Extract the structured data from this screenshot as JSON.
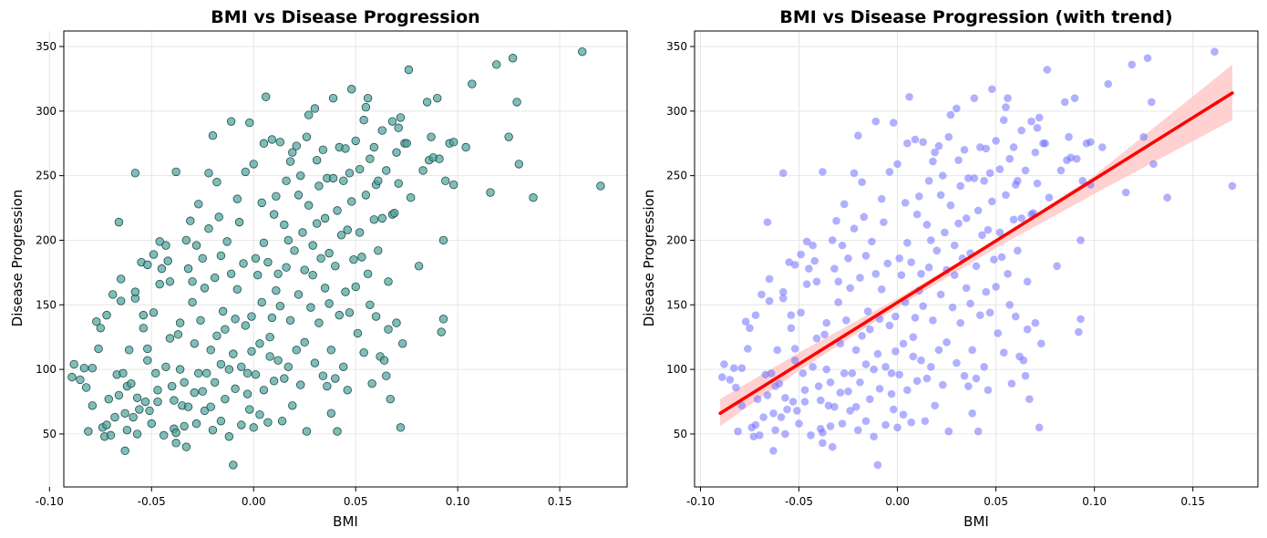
{
  "chart_data": [
    {
      "type": "scatter",
      "title": "BMI vs Disease Progression",
      "xlabel": "BMI",
      "ylabel": "Disease Progression",
      "xlim": [
        -0.093,
        0.183
      ],
      "ylim": [
        9,
        362
      ],
      "xticks": [
        "-0.10",
        "-0.05",
        "0.00",
        "0.05",
        "0.10",
        "0.15"
      ],
      "yticks": [
        "50",
        "100",
        "150",
        "200",
        "250",
        "300",
        "350"
      ],
      "grid": true,
      "marker_color": "#4aa19a",
      "marker_edge": "#1f4d4a",
      "points_ref": "shared_points"
    },
    {
      "type": "scatter",
      "title": "BMI vs Disease Progression (with trend)",
      "xlabel": "BMI",
      "ylabel": "Disease Progression",
      "xlim": [
        -0.103,
        0.183
      ],
      "ylim": [
        9,
        362
      ],
      "xticks": [
        "-0.10",
        "-0.05",
        "0.00",
        "0.05",
        "0.10",
        "0.15"
      ],
      "yticks": [
        "50",
        "100",
        "150",
        "200",
        "250",
        "300",
        "350"
      ],
      "grid": true,
      "marker_color": "#6f6fff",
      "trend_line": {
        "color": "#ff0000",
        "x": [
          -0.09,
          0.17
        ],
        "y": [
          66,
          314
        ]
      },
      "confidence_band": {
        "color": "#ffc6c6",
        "x": [
          -0.09,
          -0.05,
          0.0,
          0.05,
          0.1,
          0.17
        ],
        "lower": [
          56,
          99,
          148,
          194,
          236,
          293
        ],
        "upper": [
          77,
          113,
          155,
          200,
          250,
          336
        ]
      },
      "points_ref": "shared_points"
    }
  ],
  "shared_points": [
    [
      -0.089,
      94
    ],
    [
      -0.088,
      104
    ],
    [
      -0.085,
      92
    ],
    [
      -0.083,
      101
    ],
    [
      -0.082,
      86
    ],
    [
      -0.081,
      52
    ],
    [
      -0.079,
      101
    ],
    [
      -0.079,
      72
    ],
    [
      -0.077,
      137
    ],
    [
      -0.076,
      116
    ],
    [
      -0.075,
      132
    ],
    [
      -0.074,
      55
    ],
    [
      -0.073,
      48
    ],
    [
      -0.072,
      142
    ],
    [
      -0.072,
      57
    ],
    [
      -0.071,
      77
    ],
    [
      -0.07,
      49
    ],
    [
      -0.069,
      158
    ],
    [
      -0.068,
      63
    ],
    [
      -0.067,
      96
    ],
    [
      -0.066,
      80
    ],
    [
      -0.066,
      214
    ],
    [
      -0.065,
      170
    ],
    [
      -0.065,
      153
    ],
    [
      -0.064,
      97
    ],
    [
      -0.063,
      37
    ],
    [
      -0.063,
      66
    ],
    [
      -0.062,
      87
    ],
    [
      -0.062,
      53
    ],
    [
      -0.061,
      115
    ],
    [
      -0.06,
      89
    ],
    [
      -0.059,
      63
    ],
    [
      -0.058,
      252
    ],
    [
      -0.058,
      155
    ],
    [
      -0.058,
      160
    ],
    [
      -0.057,
      78
    ],
    [
      -0.057,
      50
    ],
    [
      -0.056,
      69
    ],
    [
      -0.055,
      183
    ],
    [
      -0.054,
      142
    ],
    [
      -0.054,
      132
    ],
    [
      -0.053,
      75
    ],
    [
      -0.052,
      107
    ],
    [
      -0.052,
      116
    ],
    [
      -0.052,
      181
    ],
    [
      -0.051,
      68
    ],
    [
      -0.05,
      58
    ],
    [
      -0.049,
      189
    ],
    [
      -0.049,
      144
    ],
    [
      -0.048,
      97
    ],
    [
      -0.047,
      84
    ],
    [
      -0.047,
      75
    ],
    [
      -0.046,
      166
    ],
    [
      -0.046,
      199
    ],
    [
      -0.045,
      178
    ],
    [
      -0.044,
      49
    ],
    [
      -0.043,
      196
    ],
    [
      -0.043,
      102
    ],
    [
      -0.042,
      184
    ],
    [
      -0.041,
      168
    ],
    [
      -0.041,
      124
    ],
    [
      -0.04,
      87
    ],
    [
      -0.039,
      54
    ],
    [
      -0.039,
      76
    ],
    [
      -0.038,
      43
    ],
    [
      -0.038,
      253
    ],
    [
      -0.038,
      51
    ],
    [
      -0.037,
      127
    ],
    [
      -0.036,
      136
    ],
    [
      -0.036,
      100
    ],
    [
      -0.035,
      72
    ],
    [
      -0.034,
      56
    ],
    [
      -0.034,
      90
    ],
    [
      -0.033,
      200
    ],
    [
      -0.033,
      40
    ],
    [
      -0.032,
      178
    ],
    [
      -0.032,
      71
    ],
    [
      -0.031,
      215
    ],
    [
      -0.03,
      152
    ],
    [
      -0.03,
      168
    ],
    [
      -0.029,
      82
    ],
    [
      -0.029,
      120
    ],
    [
      -0.028,
      196
    ],
    [
      -0.028,
      58
    ],
    [
      -0.027,
      228
    ],
    [
      -0.027,
      97
    ],
    [
      -0.026,
      138
    ],
    [
      -0.025,
      186
    ],
    [
      -0.025,
      83
    ],
    [
      -0.024,
      163
    ],
    [
      -0.024,
      68
    ],
    [
      -0.023,
      97
    ],
    [
      -0.022,
      252
    ],
    [
      -0.022,
      209
    ],
    [
      -0.021,
      71
    ],
    [
      -0.021,
      115
    ],
    [
      -0.02,
      281
    ],
    [
      -0.02,
      53
    ],
    [
      -0.019,
      171
    ],
    [
      -0.019,
      90
    ],
    [
      -0.018,
      245
    ],
    [
      -0.018,
      126
    ],
    [
      -0.017,
      218
    ],
    [
      -0.016,
      104
    ],
    [
      -0.016,
      188
    ],
    [
      -0.016,
      60
    ],
    [
      -0.015,
      145
    ],
    [
      -0.014,
      77
    ],
    [
      -0.014,
      131
    ],
    [
      -0.013,
      199
    ],
    [
      -0.012,
      100
    ],
    [
      -0.012,
      48
    ],
    [
      -0.011,
      292
    ],
    [
      -0.011,
      174
    ],
    [
      -0.01,
      26
    ],
    [
      -0.01,
      112
    ],
    [
      -0.009,
      139
    ],
    [
      -0.009,
      85
    ],
    [
      -0.008,
      162
    ],
    [
      -0.008,
      232
    ],
    [
      -0.007,
      214
    ],
    [
      -0.006,
      57
    ],
    [
      -0.006,
      102
    ],
    [
      -0.005,
      182
    ],
    [
      -0.004,
      253
    ],
    [
      -0.004,
      134
    ],
    [
      -0.003,
      97
    ],
    [
      -0.003,
      81
    ],
    [
      -0.002,
      291
    ],
    [
      -0.002,
      69
    ],
    [
      -0.001,
      141
    ],
    [
      -0.001,
      114
    ],
    [
      0.0,
      259
    ],
    [
      0.0,
      55
    ],
    [
      0.001,
      186
    ],
    [
      0.001,
      96
    ],
    [
      0.002,
      173
    ],
    [
      0.003,
      65
    ],
    [
      0.003,
      120
    ],
    [
      0.004,
      229
    ],
    [
      0.004,
      152
    ],
    [
      0.005,
      84
    ],
    [
      0.005,
      275
    ],
    [
      0.005,
      198
    ],
    [
      0.006,
      311
    ],
    [
      0.007,
      59
    ],
    [
      0.007,
      183
    ],
    [
      0.008,
      110
    ],
    [
      0.008,
      125
    ],
    [
      0.009,
      278
    ],
    [
      0.009,
      140
    ],
    [
      0.01,
      220
    ],
    [
      0.01,
      91
    ],
    [
      0.011,
      234
    ],
    [
      0.011,
      161
    ],
    [
      0.012,
      174
    ],
    [
      0.012,
      107
    ],
    [
      0.013,
      276
    ],
    [
      0.013,
      149
    ],
    [
      0.014,
      60
    ],
    [
      0.015,
      212
    ],
    [
      0.015,
      93
    ],
    [
      0.016,
      246
    ],
    [
      0.016,
      179
    ],
    [
      0.017,
      200
    ],
    [
      0.017,
      102
    ],
    [
      0.018,
      261
    ],
    [
      0.018,
      138
    ],
    [
      0.019,
      268
    ],
    [
      0.019,
      72
    ],
    [
      0.02,
      192
    ],
    [
      0.021,
      115
    ],
    [
      0.021,
      273
    ],
    [
      0.022,
      235
    ],
    [
      0.022,
      158
    ],
    [
      0.023,
      250
    ],
    [
      0.023,
      88
    ],
    [
      0.024,
      206
    ],
    [
      0.025,
      177
    ],
    [
      0.025,
      121
    ],
    [
      0.026,
      280
    ],
    [
      0.026,
      52
    ],
    [
      0.027,
      297
    ],
    [
      0.027,
      227
    ],
    [
      0.028,
      148
    ],
    [
      0.029,
      196
    ],
    [
      0.029,
      173
    ],
    [
      0.03,
      302
    ],
    [
      0.03,
      105
    ],
    [
      0.031,
      262
    ],
    [
      0.031,
      213
    ],
    [
      0.032,
      242
    ],
    [
      0.032,
      136
    ],
    [
      0.033,
      186
    ],
    [
      0.034,
      95
    ],
    [
      0.034,
      270
    ],
    [
      0.035,
      163
    ],
    [
      0.035,
      217
    ],
    [
      0.036,
      87
    ],
    [
      0.036,
      248
    ],
    [
      0.037,
      151
    ],
    [
      0.037,
      190
    ],
    [
      0.038,
      66
    ],
    [
      0.038,
      115
    ],
    [
      0.039,
      310
    ],
    [
      0.039,
      248
    ],
    [
      0.04,
      93
    ],
    [
      0.04,
      180
    ],
    [
      0.041,
      52
    ],
    [
      0.041,
      223
    ],
    [
      0.042,
      142
    ],
    [
      0.042,
      272
    ],
    [
      0.043,
      204
    ],
    [
      0.044,
      102
    ],
    [
      0.044,
      246
    ],
    [
      0.045,
      160
    ],
    [
      0.045,
      271
    ],
    [
      0.046,
      208
    ],
    [
      0.046,
      84
    ],
    [
      0.047,
      252
    ],
    [
      0.047,
      144
    ],
    [
      0.048,
      317
    ],
    [
      0.048,
      230
    ],
    [
      0.049,
      185
    ],
    [
      0.05,
      277
    ],
    [
      0.05,
      164
    ],
    [
      0.051,
      128
    ],
    [
      0.052,
      206
    ],
    [
      0.052,
      255
    ],
    [
      0.053,
      187
    ],
    [
      0.054,
      293
    ],
    [
      0.054,
      113
    ],
    [
      0.055,
      303
    ],
    [
      0.055,
      235
    ],
    [
      0.056,
      310
    ],
    [
      0.056,
      174
    ],
    [
      0.057,
      263
    ],
    [
      0.057,
      150
    ],
    [
      0.058,
      89
    ],
    [
      0.059,
      216
    ],
    [
      0.059,
      272
    ],
    [
      0.06,
      141
    ],
    [
      0.06,
      243
    ],
    [
      0.061,
      246
    ],
    [
      0.061,
      192
    ],
    [
      0.062,
      110
    ],
    [
      0.063,
      285
    ],
    [
      0.063,
      217
    ],
    [
      0.064,
      107
    ],
    [
      0.065,
      95
    ],
    [
      0.065,
      254
    ],
    [
      0.066,
      168
    ],
    [
      0.066,
      131
    ],
    [
      0.067,
      77
    ],
    [
      0.068,
      220
    ],
    [
      0.068,
      292
    ],
    [
      0.069,
      221
    ],
    [
      0.07,
      268
    ],
    [
      0.07,
      136
    ],
    [
      0.071,
      244
    ],
    [
      0.071,
      287
    ],
    [
      0.072,
      55
    ],
    [
      0.072,
      295
    ],
    [
      0.073,
      120
    ],
    [
      0.074,
      275
    ],
    [
      0.075,
      275
    ],
    [
      0.076,
      332
    ],
    [
      0.077,
      233
    ],
    [
      0.081,
      180
    ],
    [
      0.083,
      254
    ],
    [
      0.085,
      307
    ],
    [
      0.086,
      262
    ],
    [
      0.087,
      280
    ],
    [
      0.088,
      264
    ],
    [
      0.09,
      310
    ],
    [
      0.091,
      263
    ],
    [
      0.092,
      129
    ],
    [
      0.093,
      139
    ],
    [
      0.093,
      200
    ],
    [
      0.094,
      246
    ],
    [
      0.096,
      275
    ],
    [
      0.098,
      276
    ],
    [
      0.098,
      243
    ],
    [
      0.104,
      272
    ],
    [
      0.107,
      321
    ],
    [
      0.116,
      237
    ],
    [
      0.119,
      336
    ],
    [
      0.125,
      280
    ],
    [
      0.127,
      341
    ],
    [
      0.129,
      307
    ],
    [
      0.13,
      259
    ],
    [
      0.137,
      233
    ],
    [
      0.161,
      346
    ],
    [
      0.17,
      242
    ]
  ]
}
